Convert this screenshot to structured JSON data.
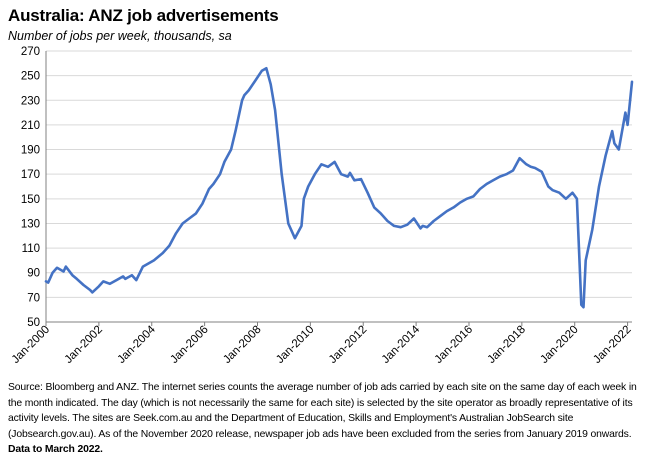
{
  "header": {
    "title": "Australia: ANZ job advertisements",
    "subtitle": "Number of jobs per week, thousands, sa"
  },
  "footer": {
    "source_note": "Source: Bloomberg and ANZ.  The internet series counts the average number of job ads carried by each site on the same day of each week in the month indicated. The day (which is not necessarily the same for each site) is selected by the site operator as broadly representative of its activity levels. The sites are Seek.com.au and the Department of Education, Skills and Employment's Australian JobSearch site (Jobsearch.gov.au). As of the November 2020 release, newspaper job ads have been excluded from the series from January 2019 onwards.",
    "bold_note": "Data to March 2022."
  },
  "colors": {
    "line": "#4472C4",
    "grid": "#d9d9d9",
    "axis": "#808080"
  },
  "chart_data": {
    "type": "line",
    "title": "Australia: ANZ job advertisements",
    "ylabel": "Number of jobs per week, thousands, sa",
    "xlabel": "",
    "ylim": [
      50,
      270
    ],
    "yticks": [
      50,
      70,
      90,
      110,
      130,
      150,
      170,
      190,
      210,
      230,
      250,
      270
    ],
    "xlim": [
      "2000-01",
      "2022-03"
    ],
    "xticks": [
      "Jan-2000",
      "Jan-2002",
      "Jan-2004",
      "Jan-2006",
      "Jan-2008",
      "Jan-2010",
      "Jan-2012",
      "Jan-2014",
      "Jan-2016",
      "Jan-2018",
      "Jan-2020",
      "Jan-2022"
    ],
    "grid": true,
    "legend": "none",
    "series": [
      {
        "x": [
          "2000-01",
          "2000-02",
          "2000-04",
          "2000-06",
          "2000-09",
          "2000-10",
          "2001-01",
          "2001-03",
          "2001-06",
          "2001-09",
          "2001-10",
          "2002-01",
          "2002-03",
          "2002-06",
          "2002-09",
          "2002-12",
          "2003-01",
          "2003-04",
          "2003-06",
          "2003-09",
          "2003-12",
          "2004-02",
          "2004-06",
          "2004-09",
          "2004-12",
          "2005-03",
          "2005-06",
          "2005-09",
          "2005-12",
          "2006-03",
          "2006-05",
          "2006-08",
          "2006-10",
          "2007-01",
          "2007-03",
          "2007-06",
          "2007-07",
          "2007-09",
          "2007-12",
          "2008-03",
          "2008-05",
          "2008-07",
          "2008-09",
          "2008-12",
          "2009-03",
          "2009-06",
          "2009-09",
          "2009-10",
          "2009-12",
          "2010-03",
          "2010-06",
          "2010-09",
          "2010-12",
          "2011-03",
          "2011-06",
          "2011-07",
          "2011-09",
          "2011-12",
          "2012-03",
          "2012-06",
          "2012-09",
          "2012-12",
          "2013-03",
          "2013-06",
          "2013-09",
          "2013-12",
          "2014-03",
          "2014-04",
          "2014-06",
          "2014-09",
          "2014-12",
          "2015-03",
          "2015-06",
          "2015-09",
          "2015-12",
          "2016-03",
          "2016-06",
          "2016-09",
          "2016-12",
          "2017-03",
          "2017-06",
          "2017-09",
          "2017-12",
          "2018-03",
          "2018-05",
          "2018-07",
          "2018-10",
          "2019-01",
          "2019-03",
          "2019-06",
          "2019-09",
          "2019-12",
          "2020-02",
          "2020-04",
          "2020-05",
          "2020-06",
          "2020-09",
          "2020-12",
          "2021-03",
          "2021-06",
          "2021-07",
          "2021-09",
          "2021-12",
          "2022-01",
          "2022-03"
        ],
        "values": [
          83,
          82,
          90,
          94,
          91,
          95,
          88,
          85,
          80,
          76,
          74,
          79,
          83,
          81,
          84,
          87,
          85,
          88,
          84,
          95,
          98,
          100,
          106,
          112,
          122,
          130,
          134,
          138,
          146,
          158,
          162,
          170,
          180,
          190,
          205,
          230,
          234,
          238,
          246,
          254,
          256,
          243,
          222,
          170,
          130,
          118,
          128,
          150,
          160,
          170,
          178,
          176,
          180,
          170,
          168,
          171,
          165,
          166,
          155,
          143,
          138,
          132,
          128,
          127,
          129,
          134,
          126,
          128,
          127,
          132,
          136,
          140,
          143,
          147,
          150,
          152,
          158,
          162,
          165,
          168,
          170,
          173,
          183,
          178,
          176,
          175,
          172,
          160,
          157,
          155,
          150,
          155,
          150,
          64,
          62,
          100,
          125,
          160,
          185,
          205,
          195,
          190,
          220,
          210,
          245
        ]
      }
    ]
  }
}
